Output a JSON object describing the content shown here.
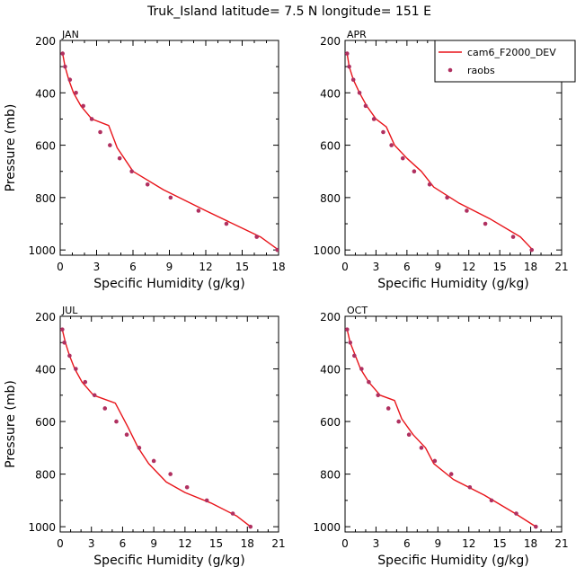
{
  "figure": {
    "title": "Truk_Island  latitude= 7.5 N longitude= 151 E"
  },
  "colors": {
    "model": "#e8141a",
    "raobs": "#b03060"
  },
  "chart_data": [
    {
      "type": "line",
      "panel_label": "JAN",
      "xlabel": "Specific Humidity (g/kg)",
      "ylabel": "Pressure (mb)",
      "xlim": [
        0,
        18
      ],
      "ylim": [
        1020,
        200
      ],
      "xticks": [
        0,
        3,
        6,
        9,
        12,
        15,
        18
      ],
      "yticks": [
        200,
        400,
        600,
        800,
        1000
      ],
      "series": [
        {
          "name": "cam6_F2000_DEV",
          "style": "line",
          "x": [
            0.2,
            0.4,
            0.7,
            1.1,
            1.7,
            2.6,
            4.0,
            4.7,
            6.0,
            8.5,
            12.0,
            16.5,
            18.0
          ],
          "y": [
            250,
            300,
            350,
            400,
            450,
            500,
            525,
            610,
            700,
            770,
            850,
            950,
            1000
          ]
        },
        {
          "name": "raobs",
          "style": "markers",
          "x": [
            0.2,
            0.4,
            0.8,
            1.3,
            1.9,
            2.6,
            3.3,
            4.1,
            4.9,
            5.9,
            7.2,
            9.1,
            11.4,
            13.7,
            16.2,
            17.9
          ],
          "y": [
            250,
            300,
            350,
            400,
            450,
            500,
            550,
            600,
            650,
            700,
            750,
            800,
            850,
            900,
            950,
            1000
          ]
        }
      ]
    },
    {
      "type": "line",
      "panel_label": "APR",
      "xlabel": "Specific Humidity (g/kg)",
      "ylabel": "",
      "xlim": [
        0,
        21
      ],
      "ylim": [
        1020,
        200
      ],
      "xticks": [
        0,
        3,
        6,
        9,
        12,
        15,
        18,
        21
      ],
      "yticks": [
        200,
        400,
        600,
        800,
        1000
      ],
      "legend": {
        "position": "top-right",
        "entries": [
          "cam6_F2000_DEV",
          "raobs"
        ]
      },
      "series": [
        {
          "name": "cam6_F2000_DEV",
          "style": "line",
          "x": [
            0.2,
            0.4,
            0.8,
            1.4,
            2.1,
            3.0,
            4.0,
            4.8,
            6.0,
            7.4,
            8.6,
            11.0,
            14.0,
            17.0,
            18.2
          ],
          "y": [
            250,
            300,
            350,
            400,
            450,
            500,
            530,
            600,
            650,
            700,
            760,
            820,
            880,
            950,
            1000
          ]
        },
        {
          "name": "raobs",
          "style": "markers",
          "x": [
            0.2,
            0.4,
            0.8,
            1.4,
            2.0,
            2.8,
            3.7,
            4.5,
            5.6,
            6.7,
            8.2,
            9.9,
            11.8,
            13.6,
            16.3,
            18.1
          ],
          "y": [
            250,
            300,
            350,
            400,
            450,
            500,
            550,
            600,
            650,
            700,
            750,
            800,
            850,
            900,
            950,
            1000
          ]
        }
      ]
    },
    {
      "type": "line",
      "panel_label": "JUL",
      "xlabel": "Specific Humidity (g/kg)",
      "ylabel": "Pressure (mb)",
      "xlim": [
        0,
        21
      ],
      "ylim": [
        1020,
        200
      ],
      "xticks": [
        0,
        3,
        6,
        9,
        12,
        15,
        18,
        21
      ],
      "yticks": [
        200,
        400,
        600,
        800,
        1000
      ],
      "series": [
        {
          "name": "cam6_F2000_DEV",
          "style": "line",
          "x": [
            0.2,
            0.5,
            0.9,
            1.4,
            2.1,
            3.2,
            5.3,
            6.5,
            7.5,
            8.5,
            10.2,
            12.0,
            14.5,
            17.0,
            18.3
          ],
          "y": [
            250,
            300,
            350,
            400,
            450,
            500,
            530,
            620,
            700,
            760,
            830,
            870,
            910,
            960,
            1000
          ]
        },
        {
          "name": "raobs",
          "style": "markers",
          "x": [
            0.2,
            0.4,
            0.9,
            1.5,
            2.4,
            3.3,
            4.3,
            5.4,
            6.4,
            7.6,
            9.0,
            10.6,
            12.2,
            14.1,
            16.6,
            18.3
          ],
          "y": [
            250,
            300,
            350,
            400,
            450,
            500,
            550,
            600,
            650,
            700,
            750,
            800,
            850,
            900,
            950,
            1000
          ]
        }
      ]
    },
    {
      "type": "line",
      "panel_label": "OCT",
      "xlabel": "Specific Humidity (g/kg)",
      "ylabel": "",
      "xlim": [
        0,
        21
      ],
      "ylim": [
        1020,
        200
      ],
      "xticks": [
        0,
        3,
        6,
        9,
        12,
        15,
        18,
        21
      ],
      "yticks": [
        200,
        400,
        600,
        800,
        1000
      ],
      "series": [
        {
          "name": "cam6_F2000_DEV",
          "style": "line",
          "x": [
            0.2,
            0.5,
            1.0,
            1.5,
            2.3,
            3.4,
            4.8,
            5.5,
            6.6,
            7.8,
            8.6,
            10.5,
            13.5,
            16.5,
            18.5
          ],
          "y": [
            250,
            300,
            350,
            400,
            450,
            500,
            520,
            590,
            650,
            700,
            760,
            820,
            880,
            950,
            1000
          ]
        },
        {
          "name": "raobs",
          "style": "markers",
          "x": [
            0.2,
            0.5,
            0.9,
            1.6,
            2.3,
            3.2,
            4.2,
            5.2,
            6.2,
            7.4,
            8.7,
            10.3,
            12.1,
            14.2,
            16.6,
            18.5
          ],
          "y": [
            250,
            300,
            350,
            400,
            450,
            500,
            550,
            600,
            650,
            700,
            750,
            800,
            850,
            900,
            950,
            1000
          ]
        }
      ]
    }
  ]
}
